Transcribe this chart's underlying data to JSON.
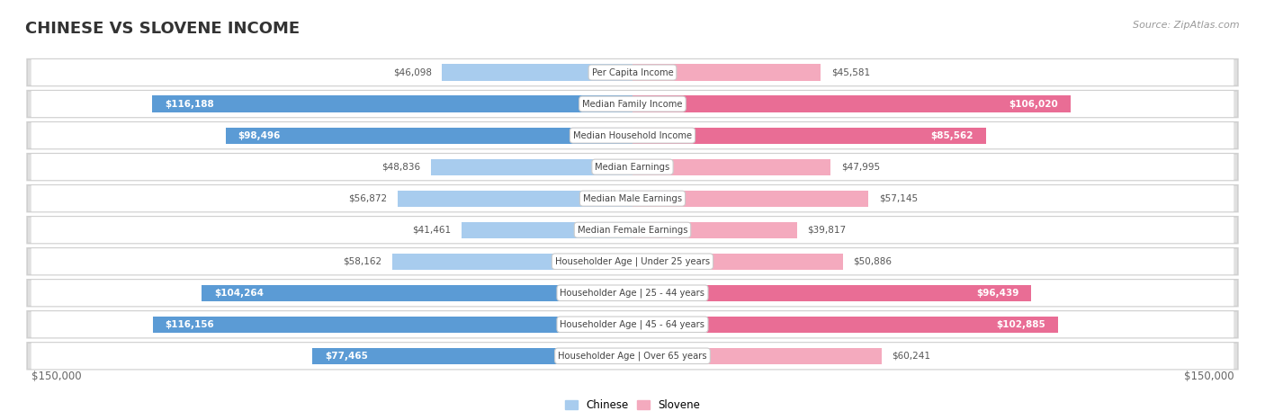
{
  "title": "CHINESE VS SLOVENE INCOME",
  "source": "Source: ZipAtlas.com",
  "categories": [
    "Per Capita Income",
    "Median Family Income",
    "Median Household Income",
    "Median Earnings",
    "Median Male Earnings",
    "Median Female Earnings",
    "Householder Age | Under 25 years",
    "Householder Age | 25 - 44 years",
    "Householder Age | 45 - 64 years",
    "Householder Age | Over 65 years"
  ],
  "chinese_values": [
    46098,
    116188,
    98496,
    48836,
    56872,
    41461,
    58162,
    104264,
    116156,
    77465
  ],
  "slovene_values": [
    45581,
    106020,
    85562,
    47995,
    57145,
    39817,
    50886,
    96439,
    102885,
    60241
  ],
  "chinese_color_light": "#A8CCEE",
  "chinese_color_dark": "#5B9BD5",
  "slovene_color_light": "#F4AABE",
  "slovene_color_dark": "#E96D95",
  "chinese_label": "Chinese",
  "slovene_label": "Slovene",
  "max_value": 150000,
  "background_color": "#ffffff",
  "row_bg_even": "#f2f2f2",
  "row_bg_odd": "#fafafa",
  "title_fontsize": 13,
  "axis_label": "$150,000",
  "bar_height": 0.52,
  "inside_label_threshold": 70000
}
